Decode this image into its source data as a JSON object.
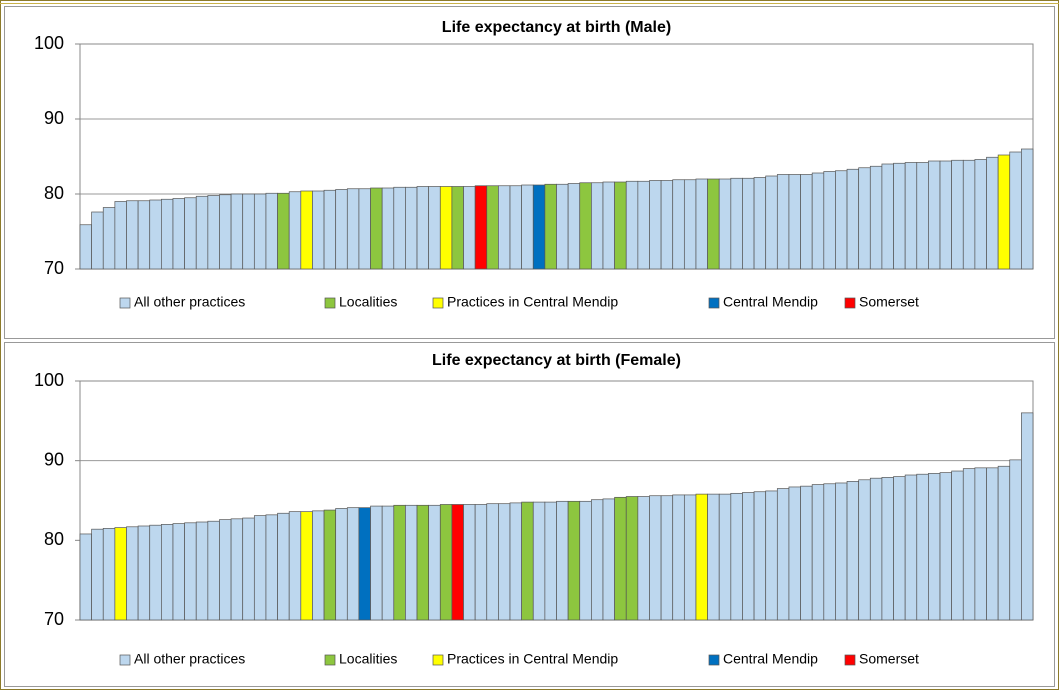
{
  "chart_data": [
    {
      "type": "bar",
      "title": "Life expectancy at birth (Male)",
      "ylim": [
        70,
        100
      ],
      "yticks": [
        70,
        80,
        90,
        100
      ],
      "grid": true,
      "legend_items": [
        {
          "name": "All other practices",
          "color": "#bdd7ee"
        },
        {
          "name": "Localities",
          "color": "#8dc63f"
        },
        {
          "name": "Practices in Central Mendip",
          "color": "#ffff00"
        },
        {
          "name": "Central Mendip",
          "color": "#0070c0"
        },
        {
          "name": "Somerset",
          "color": "#ff0000"
        }
      ],
      "values": [
        75.9,
        77.6,
        78.2,
        79.0,
        79.1,
        79.1,
        79.2,
        79.3,
        79.4,
        79.5,
        79.7,
        79.8,
        79.9,
        80.0,
        80.0,
        80.0,
        80.1,
        80.1,
        80.3,
        80.4,
        80.4,
        80.5,
        80.6,
        80.7,
        80.7,
        80.8,
        80.8,
        80.9,
        80.9,
        81.0,
        81.0,
        81.0,
        81.0,
        81.0,
        81.1,
        81.1,
        81.1,
        81.1,
        81.2,
        81.2,
        81.3,
        81.3,
        81.4,
        81.5,
        81.5,
        81.6,
        81.6,
        81.7,
        81.7,
        81.8,
        81.8,
        81.9,
        81.9,
        82.0,
        82.0,
        82.0,
        82.1,
        82.1,
        82.2,
        82.4,
        82.6,
        82.6,
        82.6,
        82.8,
        83.0,
        83.1,
        83.3,
        83.5,
        83.7,
        84.0,
        84.1,
        84.2,
        84.2,
        84.4,
        84.4,
        84.5,
        84.5,
        84.6,
        84.9,
        85.2,
        85.6,
        86.0
      ],
      "groups": [
        0,
        0,
        0,
        0,
        0,
        0,
        0,
        0,
        0,
        0,
        0,
        0,
        0,
        0,
        0,
        0,
        0,
        1,
        0,
        2,
        0,
        0,
        0,
        0,
        0,
        1,
        0,
        0,
        0,
        0,
        0,
        2,
        1,
        0,
        4,
        1,
        0,
        0,
        0,
        3,
        1,
        0,
        0,
        1,
        0,
        0,
        1,
        0,
        0,
        0,
        0,
        0,
        0,
        0,
        1,
        0,
        0,
        0,
        0,
        0,
        0,
        0,
        0,
        0,
        0,
        0,
        0,
        0,
        0,
        0,
        0,
        0,
        0,
        0,
        0,
        0,
        0,
        0,
        0,
        2,
        0,
        0
      ]
    },
    {
      "type": "bar",
      "title": "Life expectancy at birth (Female)",
      "ylim": [
        70,
        100
      ],
      "yticks": [
        70,
        80,
        90,
        100
      ],
      "grid": true,
      "legend_items": [
        {
          "name": "All other practices",
          "color": "#bdd7ee"
        },
        {
          "name": "Localities",
          "color": "#8dc63f"
        },
        {
          "name": "Practices in Central Mendip",
          "color": "#ffff00"
        },
        {
          "name": "Central Mendip",
          "color": "#0070c0"
        },
        {
          "name": "Somerset",
          "color": "#ff0000"
        }
      ],
      "values": [
        80.8,
        81.4,
        81.5,
        81.6,
        81.7,
        81.8,
        81.9,
        82.0,
        82.1,
        82.2,
        82.3,
        82.4,
        82.6,
        82.7,
        82.8,
        83.1,
        83.2,
        83.4,
        83.6,
        83.6,
        83.7,
        83.8,
        84.0,
        84.1,
        84.1,
        84.3,
        84.3,
        84.4,
        84.4,
        84.4,
        84.4,
        84.5,
        84.5,
        84.5,
        84.5,
        84.6,
        84.6,
        84.7,
        84.8,
        84.8,
        84.8,
        84.9,
        84.9,
        84.9,
        85.1,
        85.2,
        85.4,
        85.5,
        85.5,
        85.6,
        85.6,
        85.7,
        85.7,
        85.8,
        85.8,
        85.8,
        85.9,
        86.0,
        86.1,
        86.2,
        86.5,
        86.7,
        86.8,
        87.0,
        87.1,
        87.2,
        87.4,
        87.6,
        87.8,
        87.9,
        88.0,
        88.2,
        88.3,
        88.4,
        88.5,
        88.7,
        89.0,
        89.1,
        89.1,
        89.3,
        90.1,
        96.0
      ],
      "groups": [
        0,
        0,
        0,
        2,
        0,
        0,
        0,
        0,
        0,
        0,
        0,
        0,
        0,
        0,
        0,
        0,
        0,
        0,
        0,
        2,
        0,
        1,
        0,
        0,
        3,
        0,
        0,
        1,
        0,
        1,
        0,
        1,
        4,
        0,
        0,
        0,
        0,
        0,
        1,
        0,
        0,
        0,
        1,
        0,
        0,
        0,
        1,
        1,
        0,
        0,
        0,
        0,
        0,
        2,
        0,
        0,
        0,
        0,
        0,
        0,
        0,
        0,
        0,
        0,
        0,
        0,
        0,
        0,
        0,
        0,
        0,
        0,
        0,
        0,
        0,
        0,
        0,
        0,
        0,
        0,
        0,
        0
      ]
    }
  ]
}
